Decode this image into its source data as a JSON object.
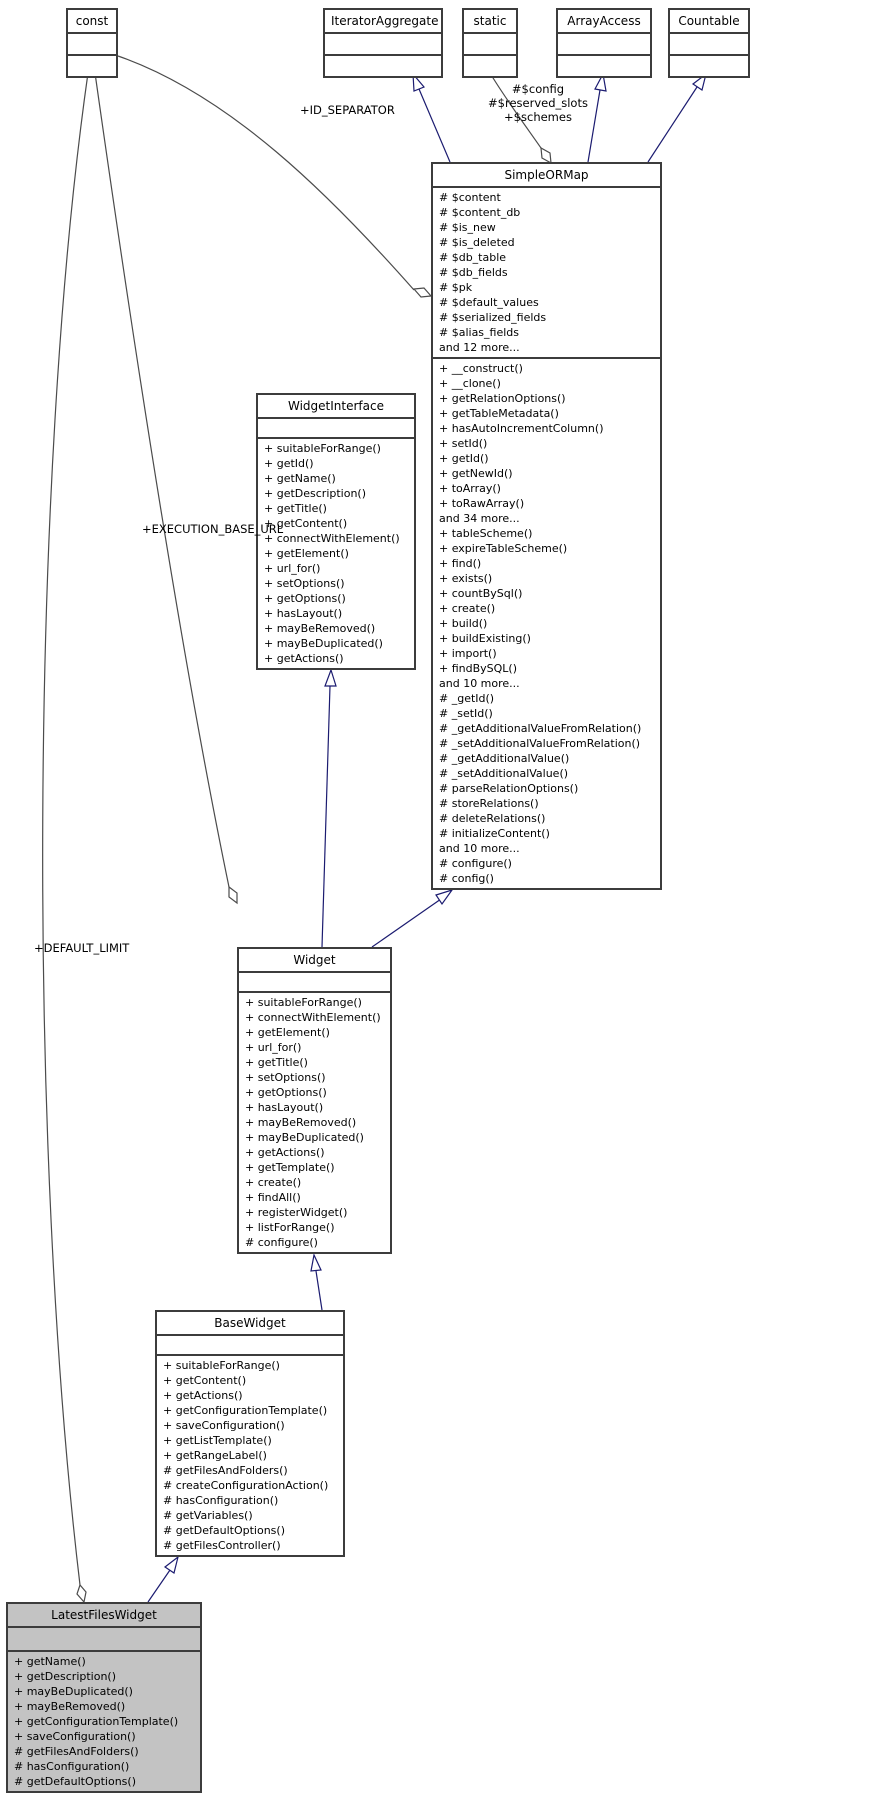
{
  "diagram": {
    "kind": "uml-class-inheritance-collaboration-graph",
    "colors": {
      "inheritance_edge": "#1b1b70",
      "association_edge": "#4b4b4b",
      "box_border": "#3c3c3c",
      "box_background": "#ffffff",
      "highlighted_box_background": "#c3c3c3"
    }
  },
  "classes": {
    "const": {
      "title": "const",
      "attributes": [],
      "methods": []
    },
    "iterator_aggregate": {
      "title": "IteratorAggregate",
      "attributes": [],
      "methods": []
    },
    "static": {
      "title": "static",
      "attributes": [],
      "methods": []
    },
    "array_access": {
      "title": "ArrayAccess",
      "attributes": [],
      "methods": []
    },
    "countable": {
      "title": "Countable",
      "attributes": [],
      "methods": []
    },
    "simple_or_map": {
      "title": "SimpleORMap",
      "attributes": [
        "# $content",
        "# $content_db",
        "# $is_new",
        "# $is_deleted",
        "# $db_table",
        "# $db_fields",
        "# $pk",
        "# $default_values",
        "# $serialized_fields",
        "# $alias_fields",
        "and 12 more..."
      ],
      "methods": [
        "+ __construct()",
        "+ __clone()",
        "+ getRelationOptions()",
        "+ getTableMetadata()",
        "+ hasAutoIncrementColumn()",
        "+ setId()",
        "+ getId()",
        "+ getNewId()",
        "+ toArray()",
        "+ toRawArray()",
        "and 34 more...",
        "+ tableScheme()",
        "+ expireTableScheme()",
        "+ find()",
        "+ exists()",
        "+ countBySql()",
        "+ create()",
        "+ build()",
        "+ buildExisting()",
        "+ import()",
        "+ findBySQL()",
        "and 10 more...",
        "# _getId()",
        "# _setId()",
        "# _getAdditionalValueFromRelation()",
        "# _setAdditionalValueFromRelation()",
        "# _getAdditionalValue()",
        "# _setAdditionalValue()",
        "# parseRelationOptions()",
        "# storeRelations()",
        "# deleteRelations()",
        "# initializeContent()",
        "and 10 more...",
        "# configure()",
        "# config()"
      ]
    },
    "widget_interface": {
      "title": "WidgetInterface",
      "attributes": [],
      "methods": [
        "+ suitableForRange()",
        "+ getId()",
        "+ getName()",
        "+ getDescription()",
        "+ getTitle()",
        "+ getContent()",
        "+ connectWithElement()",
        "+ getElement()",
        "+ url_for()",
        "+ setOptions()",
        "+ getOptions()",
        "+ hasLayout()",
        "+ mayBeRemoved()",
        "+ mayBeDuplicated()",
        "+ getActions()"
      ]
    },
    "widget": {
      "title": "Widget",
      "attributes": [],
      "methods": [
        "+ suitableForRange()",
        "+ connectWithElement()",
        "+ getElement()",
        "+ url_for()",
        "+ getTitle()",
        "+ setOptions()",
        "+ getOptions()",
        "+ hasLayout()",
        "+ mayBeRemoved()",
        "+ mayBeDuplicated()",
        "+ getActions()",
        "+ getTemplate()",
        "+ create()",
        "+ findAll()",
        "+ registerWidget()",
        "+ listForRange()",
        "# configure()"
      ]
    },
    "base_widget": {
      "title": "BaseWidget",
      "attributes": [],
      "methods": [
        "+ suitableForRange()",
        "+ getContent()",
        "+ getActions()",
        "+ getConfigurationTemplate()",
        "+ saveConfiguration()",
        "+ getListTemplate()",
        "+ getRangeLabel()",
        "# getFilesAndFolders()",
        "# createConfigurationAction()",
        "# hasConfiguration()",
        "# getVariables()",
        "# getDefaultOptions()",
        "# getFilesController()"
      ]
    },
    "latest_files_widget": {
      "title": "LatestFilesWidget",
      "attributes": [],
      "methods": [
        "+ getName()",
        "+ getDescription()",
        "+ mayBeDuplicated()",
        "+ mayBeRemoved()",
        "+ getConfigurationTemplate()",
        "+ saveConfiguration()",
        "# getFilesAndFolders()",
        "# hasConfiguration()",
        "# getDefaultOptions()"
      ]
    }
  },
  "edge_labels": {
    "id_separator": "+ID_SEPARATOR",
    "static_members": [
      "#$config",
      "#$reserved_slots",
      "+$schemes"
    ],
    "execution_base_url": "+EXECUTION_BASE_URL",
    "default_limit": "+DEFAULT_LIMIT"
  },
  "relations": [
    {
      "from": "SimpleORMap",
      "to": "IteratorAggregate",
      "type": "implements"
    },
    {
      "from": "SimpleORMap",
      "to": "ArrayAccess",
      "type": "implements"
    },
    {
      "from": "SimpleORMap",
      "to": "Countable",
      "type": "implements"
    },
    {
      "from": "SimpleORMap",
      "to": "const",
      "type": "usage",
      "label": "+ID_SEPARATOR"
    },
    {
      "from": "SimpleORMap",
      "to": "static",
      "type": "usage",
      "label": "#$config #$reserved_slots +$schemes"
    },
    {
      "from": "Widget",
      "to": "SimpleORMap",
      "type": "inherits"
    },
    {
      "from": "Widget",
      "to": "WidgetInterface",
      "type": "implements"
    },
    {
      "from": "Widget",
      "to": "const",
      "type": "usage",
      "label": "+EXECUTION_BASE_URL"
    },
    {
      "from": "BaseWidget",
      "to": "Widget",
      "type": "inherits"
    },
    {
      "from": "LatestFilesWidget",
      "to": "BaseWidget",
      "type": "inherits"
    },
    {
      "from": "LatestFilesWidget",
      "to": "const",
      "type": "usage",
      "label": "+DEFAULT_LIMIT"
    }
  ]
}
